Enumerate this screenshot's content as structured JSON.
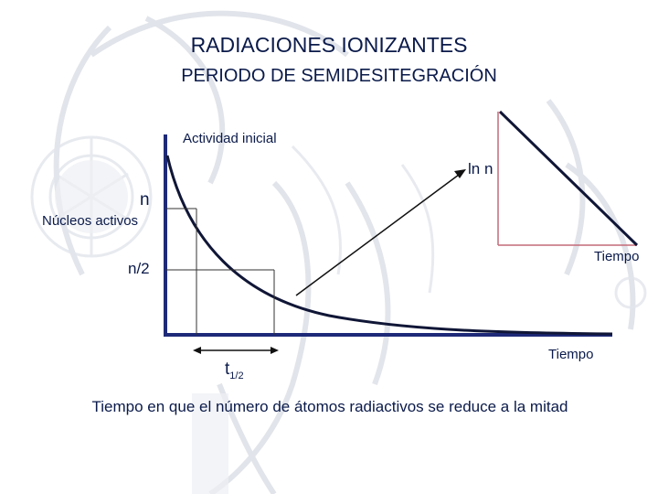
{
  "slide": {
    "title": "RADIACIONES IONIZANTES",
    "subtitle": "PERIODO DE SEMIDESITEGRACIÓN",
    "caption": "Tiempo en que el número de átomos radiactivos se reduce a la mitad"
  },
  "main_graph": {
    "top_label": "Actividad inicial",
    "y_label_n": "n",
    "y_label_axis": "Núcleos activos",
    "y_label_half": "n/2",
    "x_label": "Tiempo",
    "half_life_main": "t",
    "half_life_sub": "1/2"
  },
  "inset_graph": {
    "y_label": "ln n",
    "x_label": "Tiempo"
  },
  "colors": {
    "text": "#0a1a4a",
    "axis": "#1e2a78",
    "curve": "#101636",
    "inset_axis": "#c46a78",
    "background_art": "#d8dce4"
  }
}
